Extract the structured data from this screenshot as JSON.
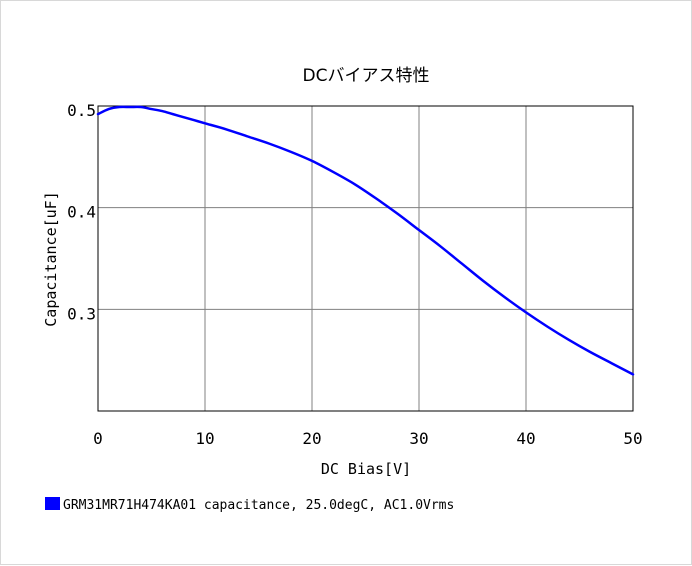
{
  "chart_data": {
    "type": "line",
    "title": "DCバイアス特性",
    "xlabel": "DC Bias[V]",
    "ylabel": "Capacitance[uF]",
    "xlim": [
      0,
      50
    ],
    "ylim": [
      0.2,
      0.5
    ],
    "xticks": [
      0,
      10,
      20,
      30,
      40,
      50
    ],
    "xtick_labels": [
      "0",
      "10",
      "20",
      "30",
      "40",
      "50"
    ],
    "yticks": [
      0.3,
      0.4,
      0.5
    ],
    "ytick_labels": [
      "0.3",
      "0.4",
      "0.5"
    ],
    "grid": true,
    "legend_position": "bottom-left",
    "series": [
      {
        "name": "GRM31MR71H474KA01 capacitance, 25.0degC, AC1.0Vrms",
        "color": "#0000ff",
        "x": [
          0,
          1,
          2,
          3,
          4,
          5,
          6,
          7,
          8,
          9,
          10,
          12,
          14,
          16,
          18,
          20,
          22,
          24,
          26,
          28,
          30,
          32,
          34,
          36,
          38,
          40,
          42,
          44,
          46,
          48,
          50
        ],
        "y": [
          0.492,
          0.497,
          0.499,
          0.499,
          0.499,
          0.497,
          0.495,
          0.492,
          0.489,
          0.486,
          0.483,
          0.477,
          0.47,
          0.463,
          0.455,
          0.446,
          0.435,
          0.423,
          0.409,
          0.394,
          0.378,
          0.362,
          0.345,
          0.328,
          0.312,
          0.297,
          0.283,
          0.27,
          0.258,
          0.247,
          0.236
        ]
      }
    ]
  }
}
